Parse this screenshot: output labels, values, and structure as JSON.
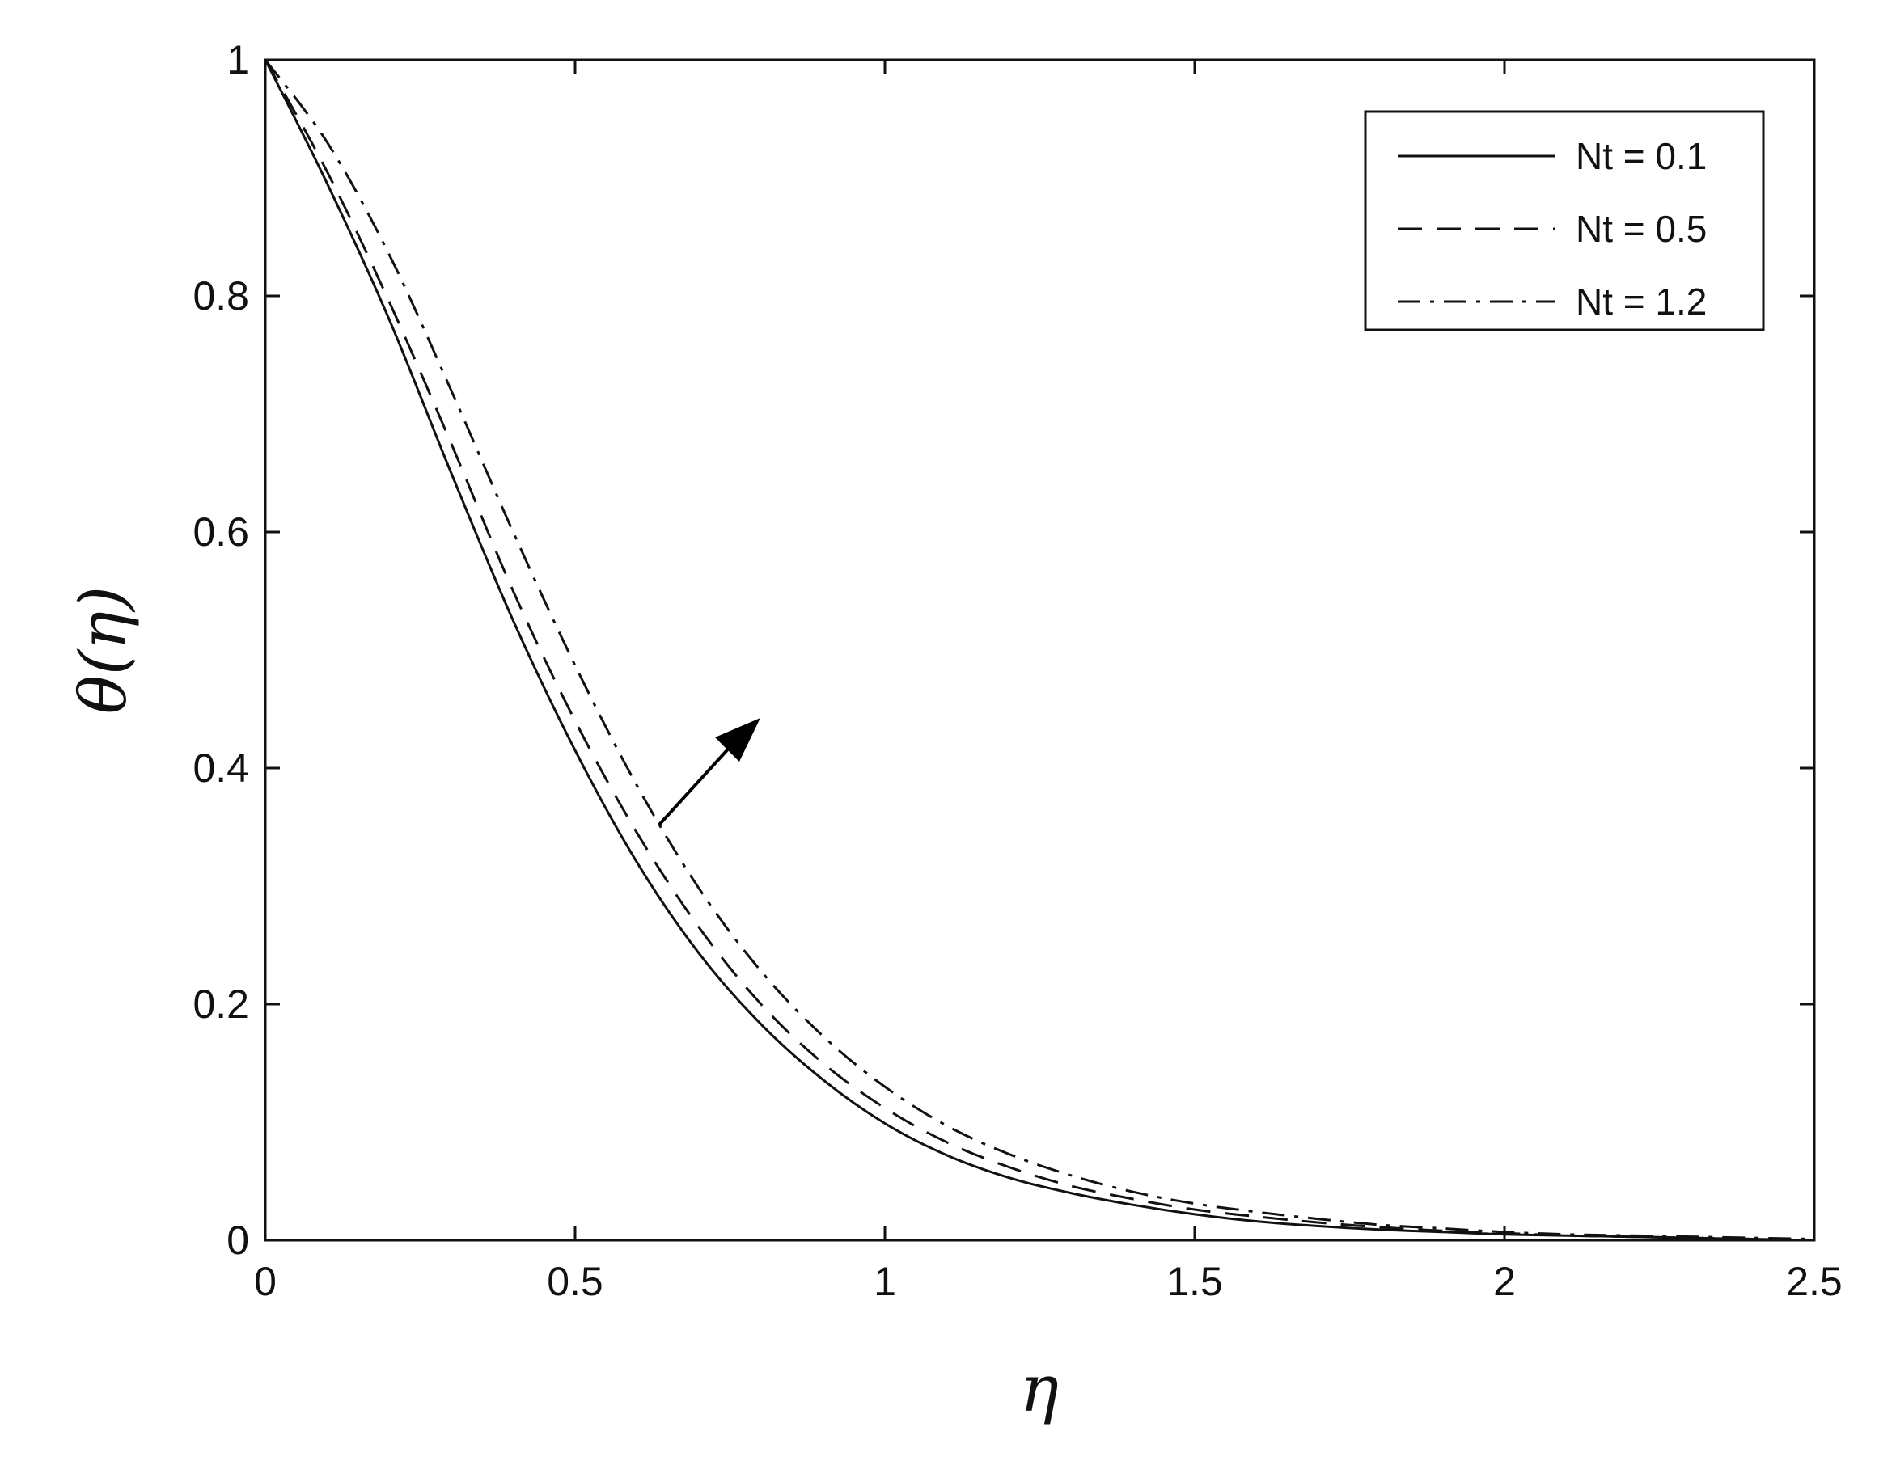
{
  "chart_data": {
    "type": "line",
    "title": "",
    "xlabel": "η",
    "ylabel": "θ(η)",
    "xlim": [
      0,
      2.5
    ],
    "ylim": [
      0,
      1
    ],
    "xticks": [
      "0",
      "0.5",
      "1",
      "1.5",
      "2",
      "2.5"
    ],
    "yticks": [
      "0",
      "0.2",
      "0.4",
      "0.6",
      "0.8",
      "1"
    ],
    "grid": false,
    "legend_position": "top-right",
    "annotation": "arrow indicating increasing Nt",
    "x": [
      0,
      0.1,
      0.2,
      0.3,
      0.4,
      0.5,
      0.6,
      0.7,
      0.8,
      0.9,
      1.0,
      1.1,
      1.2,
      1.3,
      1.4,
      1.5,
      1.6,
      1.7,
      1.8,
      1.9,
      2.0,
      2.1,
      2.2,
      2.3,
      2.4,
      2.5
    ],
    "series": [
      {
        "name": "Nt = 0.1",
        "dash": "solid",
        "values": [
          1.0,
          0.895,
          0.78,
          0.65,
          0.525,
          0.415,
          0.32,
          0.243,
          0.183,
          0.136,
          0.099,
          0.072,
          0.053,
          0.04,
          0.03,
          0.022,
          0.016,
          0.012,
          0.009,
          0.007,
          0.005,
          0.004,
          0.003,
          0.002,
          0.001,
          0.0
        ]
      },
      {
        "name": "Nt = 0.5",
        "dash": "dashed",
        "values": [
          1.0,
          0.905,
          0.795,
          0.675,
          0.55,
          0.44,
          0.345,
          0.265,
          0.2,
          0.15,
          0.112,
          0.083,
          0.062,
          0.046,
          0.035,
          0.026,
          0.02,
          0.015,
          0.011,
          0.008,
          0.006,
          0.004,
          0.003,
          0.002,
          0.001,
          0.0
        ]
      },
      {
        "name": "Nt = 1.2",
        "dash": "dashdot",
        "values": [
          1.0,
          0.93,
          0.835,
          0.72,
          0.6,
          0.487,
          0.385,
          0.298,
          0.228,
          0.173,
          0.13,
          0.097,
          0.073,
          0.055,
          0.041,
          0.031,
          0.024,
          0.018,
          0.013,
          0.01,
          0.007,
          0.005,
          0.004,
          0.003,
          0.002,
          0.001
        ]
      }
    ]
  }
}
